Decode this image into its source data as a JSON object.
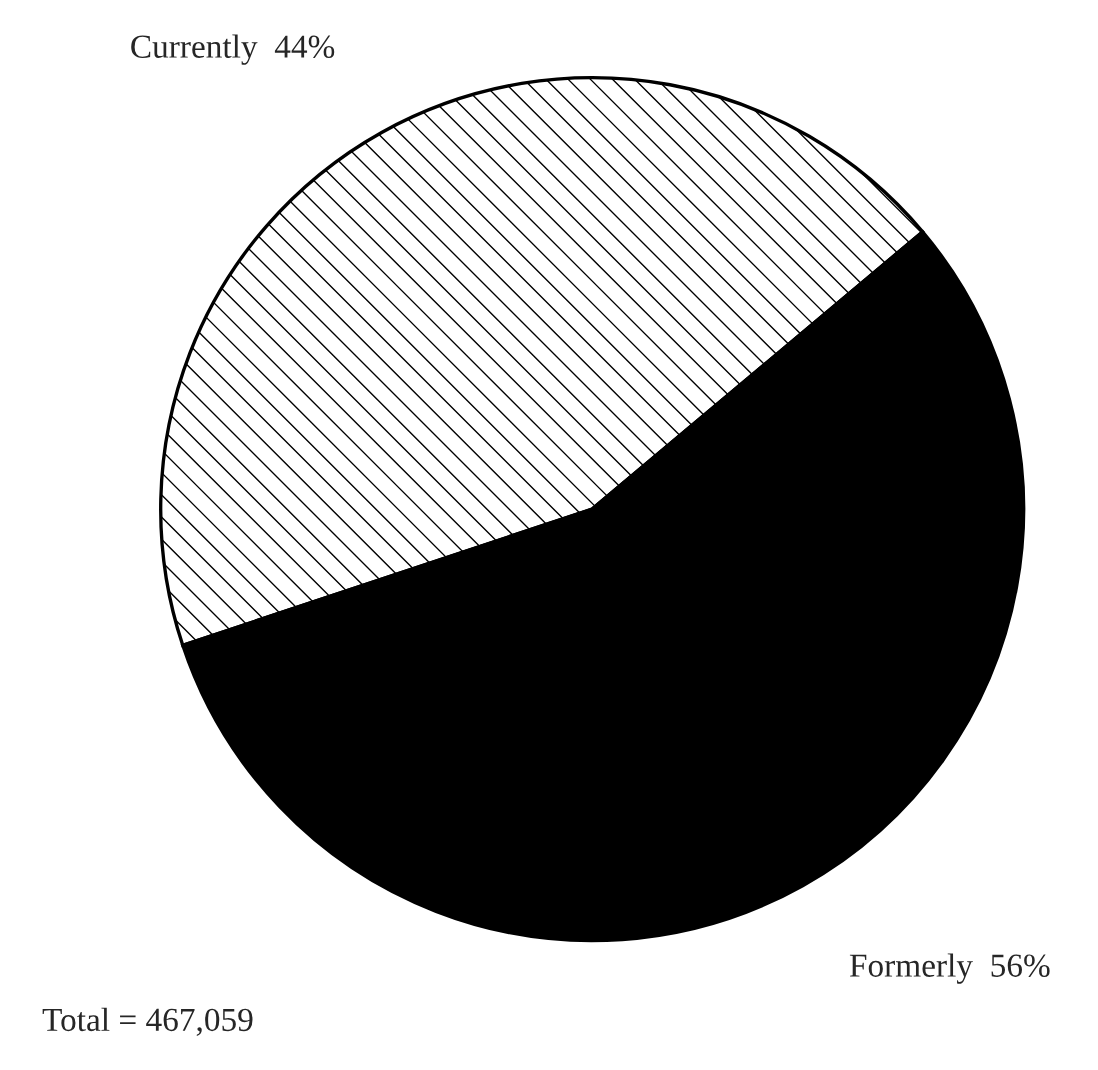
{
  "chart_data": {
    "type": "pie",
    "categories": [
      "Currently",
      "Formerly"
    ],
    "values": [
      44,
      56
    ],
    "value_labels": [
      "44%",
      "56%"
    ],
    "colors": [
      "#ffffff",
      "#000000"
    ],
    "annotations": [
      "Total = 467,059"
    ]
  }
}
